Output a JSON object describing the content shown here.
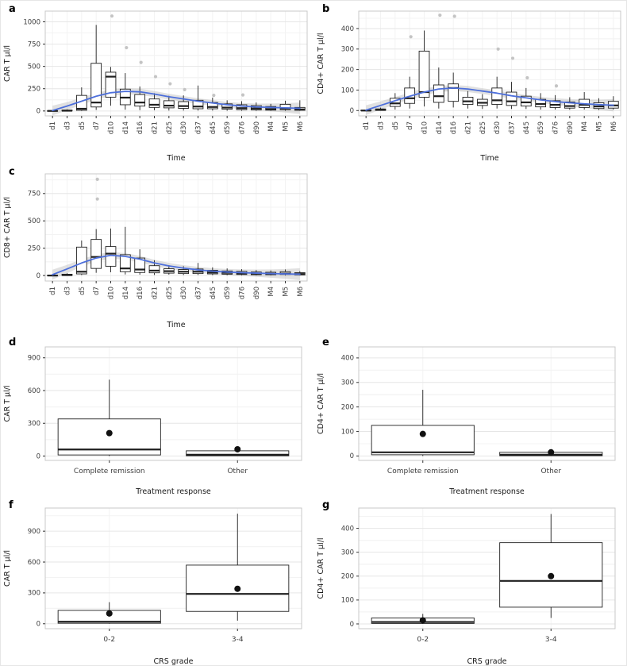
{
  "figure": {
    "background": "#ffffff"
  },
  "style": {
    "box_stroke": "#1f1f1f",
    "outlier_color": "#c4c4c4",
    "smooth_color": "#4d6fdb",
    "band_color": "#a8a8a8",
    "grid_major": "#e6e6e6",
    "grid_minor": "#f3f3f3",
    "panel_border": "#c9c9c9",
    "tick_color": "#333333",
    "text_color": "#3d3d3d",
    "mean_dot": "#111111"
  },
  "chart_data": [
    {
      "panel_label": "a",
      "type": "box-time",
      "xlabel": "Time",
      "ylabel": "CAR T µl/l",
      "ylim": [
        -55,
        1120
      ],
      "yticks": [
        0,
        250,
        500,
        750,
        1000
      ],
      "categories": [
        "d1",
        "d3",
        "d5",
        "d7",
        "d10",
        "d14",
        "d16",
        "d21",
        "d25",
        "d30",
        "d37",
        "d45",
        "d59",
        "d76",
        "d90",
        "M4",
        "M5",
        "M6"
      ],
      "boxes": [
        {
          "low": 0,
          "q1": 0,
          "med": 1,
          "q3": 4,
          "high": 8,
          "outliers": []
        },
        {
          "low": 0,
          "q1": 1,
          "med": 3,
          "q3": 10,
          "high": 18,
          "outliers": []
        },
        {
          "low": 0,
          "q1": 8,
          "med": 25,
          "q3": 175,
          "high": 265,
          "outliers": []
        },
        {
          "low": 12,
          "q1": 45,
          "med": 95,
          "q3": 535,
          "high": 965,
          "outliers": []
        },
        {
          "low": 60,
          "q1": 155,
          "med": 385,
          "q3": 435,
          "high": 495,
          "outliers": [
            1065
          ]
        },
        {
          "low": 15,
          "q1": 70,
          "med": 150,
          "q3": 245,
          "high": 425,
          "outliers": [
            710
          ]
        },
        {
          "low": 10,
          "q1": 55,
          "med": 95,
          "q3": 185,
          "high": 275,
          "outliers": [
            545
          ]
        },
        {
          "low": 8,
          "q1": 40,
          "med": 70,
          "q3": 135,
          "high": 200,
          "outliers": [
            385
          ]
        },
        {
          "low": 5,
          "q1": 35,
          "med": 60,
          "q3": 115,
          "high": 170,
          "outliers": [
            305
          ]
        },
        {
          "low": 5,
          "q1": 30,
          "med": 55,
          "q3": 105,
          "high": 175,
          "outliers": [
            240
          ]
        },
        {
          "low": 5,
          "q1": 25,
          "med": 50,
          "q3": 120,
          "high": 285,
          "outliers": []
        },
        {
          "low": 5,
          "q1": 25,
          "med": 45,
          "q3": 95,
          "high": 150,
          "outliers": [
            175
          ]
        },
        {
          "low": 3,
          "q1": 20,
          "med": 38,
          "q3": 80,
          "high": 120,
          "outliers": []
        },
        {
          "low": 3,
          "q1": 15,
          "med": 32,
          "q3": 70,
          "high": 110,
          "outliers": [
            180
          ]
        },
        {
          "low": 2,
          "q1": 12,
          "med": 28,
          "q3": 60,
          "high": 95,
          "outliers": []
        },
        {
          "low": 2,
          "q1": 10,
          "med": 22,
          "q3": 50,
          "high": 80,
          "outliers": []
        },
        {
          "low": 3,
          "q1": 15,
          "med": 30,
          "q3": 75,
          "high": 115,
          "outliers": []
        },
        {
          "low": 2,
          "q1": 8,
          "med": 18,
          "q3": 40,
          "high": 120,
          "outliers": []
        }
      ],
      "smooth": {
        "values": [
          5,
          55,
          110,
          165,
          205,
          220,
          215,
          190,
          160,
          135,
          110,
          90,
          70,
          55,
          45,
          40,
          35,
          30
        ],
        "band": [
          55,
          45,
          40,
          38,
          36,
          35,
          35,
          34,
          33,
          32,
          32,
          32,
          33,
          35,
          38,
          44,
          52,
          65
        ]
      }
    },
    {
      "panel_label": "b",
      "type": "box-time",
      "xlabel": "Time",
      "ylabel": "CD4+ CAR T µl/l",
      "ylim": [
        -26,
        485
      ],
      "yticks": [
        0,
        100,
        200,
        300,
        400
      ],
      "categories": [
        "d1",
        "d3",
        "d5",
        "d7",
        "d10",
        "d14",
        "d16",
        "d21",
        "d25",
        "d30",
        "d37",
        "d45",
        "d59",
        "d76",
        "d90",
        "M4",
        "M5",
        "M6"
      ],
      "boxes": [
        {
          "low": 0,
          "q1": 0,
          "med": 0,
          "q3": 2,
          "high": 4,
          "outliers": []
        },
        {
          "low": 0,
          "q1": 1,
          "med": 3,
          "q3": 8,
          "high": 14,
          "outliers": []
        },
        {
          "low": 5,
          "q1": 20,
          "med": 35,
          "q3": 60,
          "high": 85,
          "outliers": []
        },
        {
          "low": 10,
          "q1": 35,
          "med": 60,
          "q3": 110,
          "high": 165,
          "outliers": [
            360
          ]
        },
        {
          "low": 20,
          "q1": 65,
          "med": 90,
          "q3": 290,
          "high": 390,
          "outliers": []
        },
        {
          "low": 10,
          "q1": 40,
          "med": 70,
          "q3": 125,
          "high": 210,
          "outliers": [
            465
          ]
        },
        {
          "low": 15,
          "q1": 45,
          "med": 110,
          "q3": 130,
          "high": 185,
          "outliers": [
            460
          ]
        },
        {
          "low": 10,
          "q1": 30,
          "med": 45,
          "q3": 65,
          "high": 95,
          "outliers": []
        },
        {
          "low": 8,
          "q1": 25,
          "med": 38,
          "q3": 55,
          "high": 80,
          "outliers": []
        },
        {
          "low": 10,
          "q1": 30,
          "med": 50,
          "q3": 110,
          "high": 165,
          "outliers": [
            300
          ]
        },
        {
          "low": 8,
          "q1": 25,
          "med": 45,
          "q3": 90,
          "high": 140,
          "outliers": [
            255
          ]
        },
        {
          "low": 8,
          "q1": 22,
          "med": 40,
          "q3": 70,
          "high": 110,
          "outliers": [
            160
          ]
        },
        {
          "low": 5,
          "q1": 18,
          "med": 32,
          "q3": 55,
          "high": 85,
          "outliers": []
        },
        {
          "low": 5,
          "q1": 15,
          "med": 28,
          "q3": 48,
          "high": 75,
          "outliers": [
            120
          ]
        },
        {
          "low": 4,
          "q1": 12,
          "med": 22,
          "q3": 42,
          "high": 65,
          "outliers": []
        },
        {
          "low": 5,
          "q1": 15,
          "med": 28,
          "q3": 55,
          "high": 90,
          "outliers": []
        },
        {
          "low": 3,
          "q1": 10,
          "med": 20,
          "q3": 38,
          "high": 60,
          "outliers": []
        },
        {
          "low": 5,
          "q1": 12,
          "med": 25,
          "q3": 45,
          "high": 70,
          "outliers": []
        }
      ],
      "smooth": {
        "values": [
          2,
          25,
          48,
          70,
          90,
          105,
          110,
          105,
          95,
          85,
          72,
          62,
          52,
          44,
          38,
          33,
          29,
          26
        ],
        "band": [
          24,
          20,
          18,
          17,
          16,
          15,
          15,
          15,
          14,
          14,
          14,
          14,
          15,
          16,
          18,
          21,
          25,
          30
        ]
      }
    },
    {
      "panel_label": "c",
      "type": "box-time",
      "xlabel": "Time",
      "ylabel": "CD8+ CAR T µl/l",
      "ylim": [
        -50,
        930
      ],
      "yticks": [
        0,
        250,
        500,
        750
      ],
      "categories": [
        "d1",
        "d3",
        "d5",
        "d7",
        "d10",
        "d14",
        "d16",
        "d21",
        "d25",
        "d30",
        "d37",
        "d45",
        "d59",
        "d76",
        "d90",
        "M4",
        "M5",
        "M6"
      ],
      "boxes": [
        {
          "low": 0,
          "q1": 0,
          "med": 0,
          "q3": 3,
          "high": 6,
          "outliers": []
        },
        {
          "low": 0,
          "q1": 1,
          "med": 4,
          "q3": 12,
          "high": 22,
          "outliers": []
        },
        {
          "low": 5,
          "q1": 15,
          "med": 35,
          "q3": 260,
          "high": 320,
          "outliers": []
        },
        {
          "low": 25,
          "q1": 65,
          "med": 170,
          "q3": 330,
          "high": 425,
          "outliers": [
            880,
            700
          ]
        },
        {
          "low": 30,
          "q1": 85,
          "med": 200,
          "q3": 265,
          "high": 430,
          "outliers": []
        },
        {
          "low": 10,
          "q1": 35,
          "med": 65,
          "q3": 190,
          "high": 445,
          "outliers": []
        },
        {
          "low": 8,
          "q1": 28,
          "med": 55,
          "q3": 160,
          "high": 240,
          "outliers": []
        },
        {
          "low": 5,
          "q1": 25,
          "med": 45,
          "q3": 90,
          "high": 140,
          "outliers": []
        },
        {
          "low": 8,
          "q1": 22,
          "med": 40,
          "q3": 62,
          "high": 95,
          "outliers": []
        },
        {
          "low": 5,
          "q1": 18,
          "med": 35,
          "q3": 55,
          "high": 85,
          "outliers": []
        },
        {
          "low": 5,
          "q1": 18,
          "med": 35,
          "q3": 60,
          "high": 115,
          "outliers": []
        },
        {
          "low": 4,
          "q1": 15,
          "med": 28,
          "q3": 48,
          "high": 75,
          "outliers": []
        },
        {
          "low": 3,
          "q1": 12,
          "med": 25,
          "q3": 42,
          "high": 65,
          "outliers": []
        },
        {
          "low": 3,
          "q1": 10,
          "med": 20,
          "q3": 38,
          "high": 58,
          "outliers": []
        },
        {
          "low": 2,
          "q1": 8,
          "med": 18,
          "q3": 32,
          "high": 50,
          "outliers": []
        },
        {
          "low": 2,
          "q1": 8,
          "med": 16,
          "q3": 30,
          "high": 46,
          "outliers": []
        },
        {
          "low": 2,
          "q1": 10,
          "med": 18,
          "q3": 35,
          "high": 55,
          "outliers": []
        },
        {
          "low": 1,
          "q1": 6,
          "med": 14,
          "q3": 26,
          "high": 40,
          "outliers": []
        }
      ],
      "smooth": {
        "values": [
          8,
          60,
          115,
          160,
          185,
          175,
          150,
          115,
          88,
          68,
          52,
          40,
          32,
          26,
          22,
          18,
          15,
          12
        ],
        "band": [
          45,
          38,
          34,
          32,
          31,
          30,
          30,
          29,
          28,
          27,
          27,
          27,
          28,
          30,
          33,
          38,
          45,
          55
        ]
      }
    },
    {
      "panel_label": "d",
      "type": "box-cat",
      "xlabel": "Treatment response",
      "ylabel": "CAR T µl/l",
      "ylim": [
        -40,
        1000
      ],
      "yticks": [
        0,
        300,
        600,
        900
      ],
      "categories": [
        "Complete remission",
        "Other"
      ],
      "boxes": [
        {
          "low": 0,
          "q1": 10,
          "med": 60,
          "q3": 340,
          "high": 700,
          "mean": 210,
          "outliers": []
        },
        {
          "low": 0,
          "q1": 2,
          "med": 12,
          "q3": 48,
          "high": 60,
          "mean": 62,
          "outliers": []
        }
      ]
    },
    {
      "panel_label": "e",
      "type": "box-cat",
      "xlabel": "Treatment response",
      "ylabel": "CD4+ CAR T µl/l",
      "ylim": [
        -18,
        445
      ],
      "yticks": [
        0,
        100,
        200,
        300,
        400
      ],
      "categories": [
        "Complete remission",
        "Other"
      ],
      "boxes": [
        {
          "low": 0,
          "q1": 5,
          "med": 15,
          "q3": 125,
          "high": 270,
          "mean": 90,
          "outliers": []
        },
        {
          "low": 0,
          "q1": 1,
          "med": 5,
          "q3": 15,
          "high": 22,
          "mean": 15,
          "outliers": []
        }
      ]
    },
    {
      "panel_label": "f",
      "type": "box-cat",
      "xlabel": "CRS grade",
      "ylabel": "CAR T µl/l",
      "ylim": [
        -48,
        1125
      ],
      "yticks": [
        0,
        300,
        600,
        900
      ],
      "categories": [
        "0-2",
        "3-4"
      ],
      "boxes": [
        {
          "low": 0,
          "q1": 5,
          "med": 20,
          "q3": 130,
          "high": 210,
          "mean": 100,
          "outliers": []
        },
        {
          "low": 30,
          "q1": 120,
          "med": 290,
          "q3": 570,
          "high": 1070,
          "mean": 340,
          "outliers": []
        }
      ]
    },
    {
      "panel_label": "g",
      "type": "box-cat",
      "xlabel": "CRS grade",
      "ylabel": "CD4+ CAR T µl/l",
      "ylim": [
        -20,
        485
      ],
      "yticks": [
        0,
        100,
        200,
        300,
        400
      ],
      "categories": [
        "0-2",
        "3-4"
      ],
      "boxes": [
        {
          "low": 0,
          "q1": 2,
          "med": 8,
          "q3": 25,
          "high": 42,
          "mean": 15,
          "outliers": []
        },
        {
          "low": 25,
          "q1": 70,
          "med": 180,
          "q3": 340,
          "high": 460,
          "mean": 200,
          "outliers": []
        }
      ]
    }
  ]
}
